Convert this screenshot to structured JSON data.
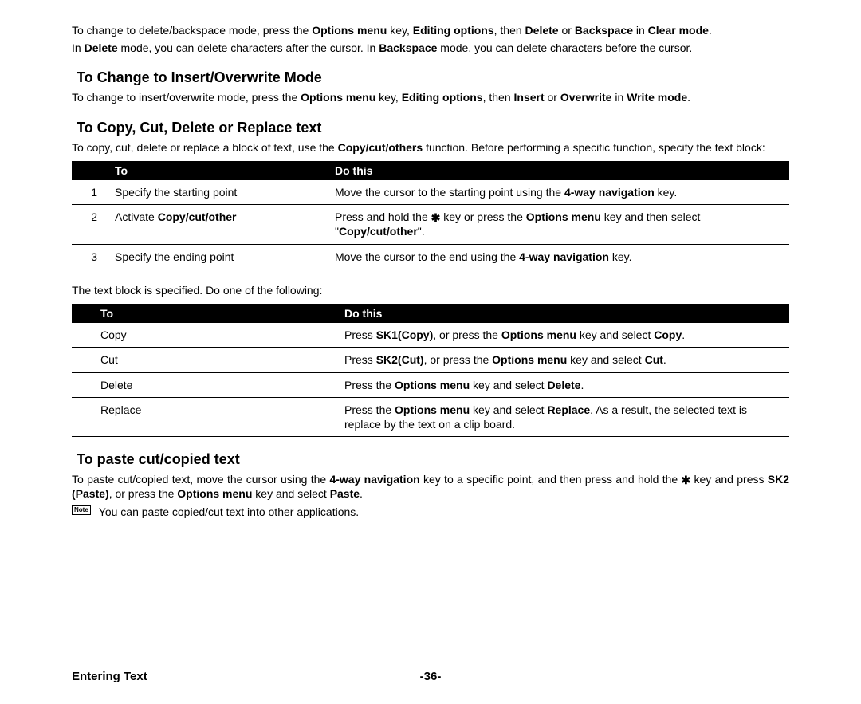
{
  "intro": {
    "p1_segments": [
      {
        "t": "To change to delete/backspace mode, press the "
      },
      {
        "t": "Options menu",
        "b": true
      },
      {
        "t": " key, "
      },
      {
        "t": "Editing options",
        "b": true
      },
      {
        "t": ", then "
      },
      {
        "t": "Delete",
        "b": true
      },
      {
        "t": " or "
      },
      {
        "t": "Backspace",
        "b": true
      },
      {
        "t": " in "
      },
      {
        "t": "Clear mode",
        "b": true
      },
      {
        "t": "."
      }
    ],
    "p2_segments": [
      {
        "t": "In "
      },
      {
        "t": "Delete",
        "b": true
      },
      {
        "t": " mode, you can delete characters after the cursor. In "
      },
      {
        "t": "Backspace",
        "b": true
      },
      {
        "t": " mode, you can delete characters before the cursor."
      }
    ]
  },
  "section1": {
    "heading": "To Change to Insert/Overwrite Mode",
    "p_segments": [
      {
        "t": "To change to insert/overwrite mode, press the "
      },
      {
        "t": "Options menu",
        "b": true
      },
      {
        "t": " key, "
      },
      {
        "t": "Editing options",
        "b": true
      },
      {
        "t": ", then "
      },
      {
        "t": "Insert",
        "b": true
      },
      {
        "t": " or "
      },
      {
        "t": "Overwrite",
        "b": true
      },
      {
        "t": " in "
      },
      {
        "t": "Write mode",
        "b": true
      },
      {
        "t": "."
      }
    ]
  },
  "section2": {
    "heading": "To Copy, Cut, Delete or Replace text",
    "p_segments": [
      {
        "t": "To copy, cut, delete or replace a block of text, use the "
      },
      {
        "t": "Copy/cut/others",
        "b": true
      },
      {
        "t": " function. Before performing a specific function, specify the text block:"
      }
    ],
    "table1": {
      "head_to": "To",
      "head_do": "Do this",
      "rows": [
        {
          "n": "1",
          "to_segments": [
            {
              "t": "Specify the starting point"
            }
          ],
          "do_segments": [
            {
              "t": "Move the cursor to the starting point using the "
            },
            {
              "t": "4-way navigation",
              "b": true
            },
            {
              "t": " key."
            }
          ]
        },
        {
          "n": "2",
          "to_segments": [
            {
              "t": "Activate "
            },
            {
              "t": "Copy/cut/other",
              "b": true
            }
          ],
          "do_segments": [
            {
              "t": "Press and hold the "
            },
            {
              "icon": "star"
            },
            {
              "t": " key or press the "
            },
            {
              "t": "Options menu",
              "b": true
            },
            {
              "t": " key and then select \""
            },
            {
              "t": "Copy/cut/other",
              "b": true
            },
            {
              "t": "\"."
            }
          ]
        },
        {
          "n": "3",
          "to_segments": [
            {
              "t": "Specify the ending point"
            }
          ],
          "do_segments": [
            {
              "t": "Move the cursor to the end using the "
            },
            {
              "t": "4-way navigation",
              "b": true
            },
            {
              "t": " key."
            }
          ]
        }
      ]
    },
    "mid_text": "The text block is specified. Do one of the following:",
    "table2": {
      "head_to": "To",
      "head_do": "Do this",
      "rows": [
        {
          "to_segments": [
            {
              "t": "Copy"
            }
          ],
          "do_segments": [
            {
              "t": "Press "
            },
            {
              "t": "SK1(Copy)",
              "b": true
            },
            {
              "t": ", or press the "
            },
            {
              "t": "Options menu",
              "b": true
            },
            {
              "t": " key and select "
            },
            {
              "t": "Copy",
              "b": true
            },
            {
              "t": "."
            }
          ]
        },
        {
          "to_segments": [
            {
              "t": "Cut"
            }
          ],
          "do_segments": [
            {
              "t": "Press "
            },
            {
              "t": "SK2(Cut)",
              "b": true
            },
            {
              "t": ", or press the "
            },
            {
              "t": "Options menu",
              "b": true
            },
            {
              "t": " key and select "
            },
            {
              "t": "Cut",
              "b": true
            },
            {
              "t": "."
            }
          ]
        },
        {
          "to_segments": [
            {
              "t": "Delete"
            }
          ],
          "do_segments": [
            {
              "t": "Press the "
            },
            {
              "t": "Options menu",
              "b": true
            },
            {
              "t": " key and select "
            },
            {
              "t": "Delete",
              "b": true
            },
            {
              "t": "."
            }
          ]
        },
        {
          "to_segments": [
            {
              "t": "Replace"
            }
          ],
          "do_segments": [
            {
              "t": "Press the "
            },
            {
              "t": "Options menu",
              "b": true
            },
            {
              "t": " key and select "
            },
            {
              "t": "Replace",
              "b": true
            },
            {
              "t": ". As a result, the selected text is replace by the text on a clip board."
            }
          ]
        }
      ]
    }
  },
  "section3": {
    "heading": "To paste cut/copied text",
    "p_segments": [
      {
        "t": "To paste cut/copied text, move the cursor using the "
      },
      {
        "t": "4-way navigation",
        "b": true
      },
      {
        "t": " key to a specific point, and then press and hold the "
      },
      {
        "icon": "star"
      },
      {
        "t": " key and press "
      },
      {
        "t": "SK2 (Paste)",
        "b": true
      },
      {
        "t": ", or press the "
      },
      {
        "t": "Options menu",
        "b": true
      },
      {
        "t": " key and select "
      },
      {
        "t": "Paste",
        "b": true
      },
      {
        "t": "."
      }
    ],
    "note_icon": "Note",
    "note_text": "You can paste copied/cut text into other applications."
  },
  "footer": {
    "left": "Entering Text",
    "center": "-36-"
  }
}
